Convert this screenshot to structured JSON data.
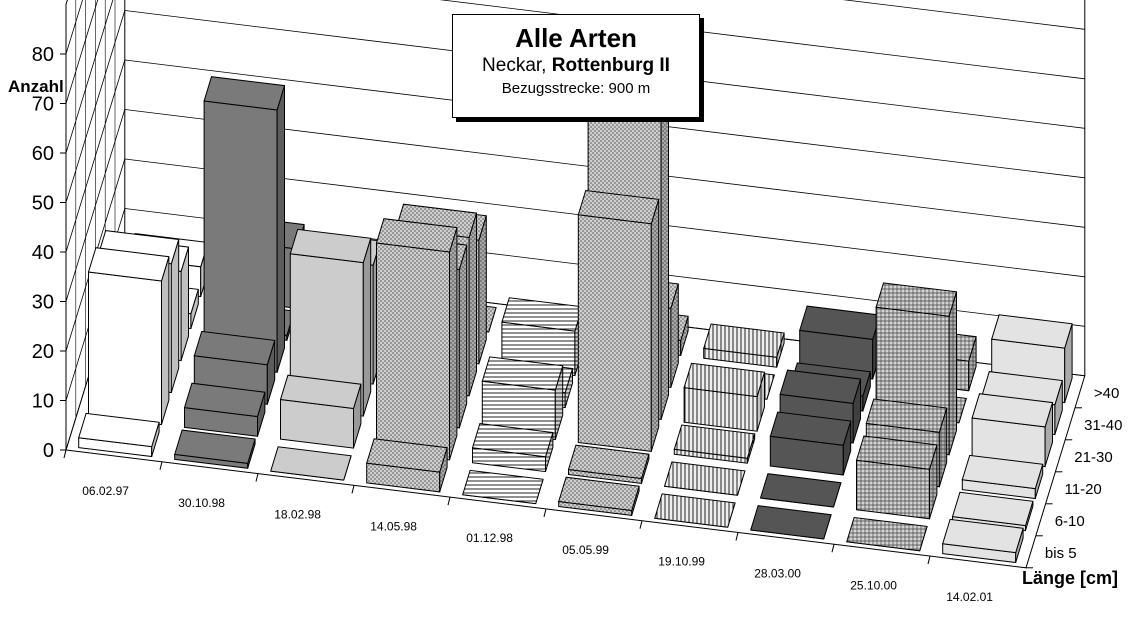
{
  "header": {
    "title": "Alle Arten",
    "subtitle_river": "Neckar,",
    "subtitle_site": "Rottenburg II",
    "reference": "Bezugsstrecke: 900 m"
  },
  "chart_data": {
    "type": "bar3d",
    "ylabel": "Anzahl",
    "zlabel": "Länge [cm]",
    "ylim": [
      0,
      80
    ],
    "yticks": [
      0,
      10,
      20,
      30,
      40,
      50,
      60,
      70,
      80
    ],
    "categories": [
      "06.02.97",
      "30.10.98",
      "18.02.98",
      "14.05.98",
      "01.12.98",
      "05.05.99",
      "19.10.99",
      "28.03.00",
      "25.10.00",
      "14.02.01"
    ],
    "series": [
      {
        "name": "bis 5",
        "values": [
          2,
          1,
          0,
          4,
          0,
          1,
          0,
          0,
          0,
          2
        ]
      },
      {
        "name": "6-10",
        "values": [
          29,
          4,
          8,
          42,
          3,
          1,
          0,
          0,
          10,
          1
        ]
      },
      {
        "name": "11-20",
        "values": [
          26,
          8,
          31,
          32,
          10,
          46,
          1,
          6,
          11,
          2
        ]
      },
      {
        "name": "21-30",
        "values": [
          18,
          53,
          24,
          32,
          3,
          70,
          7,
          8,
          28,
          8
        ]
      },
      {
        "name": "31-40",
        "values": [
          3,
          1,
          6,
          25,
          9,
          16,
          0,
          3,
          0,
          6
        ]
      },
      {
        "name": ">40",
        "values": [
          6,
          12,
          2,
          0,
          1,
          3,
          2,
          8,
          6,
          11
        ]
      }
    ],
    "colors": [
      "#d8d8d8",
      "#f0f0f0",
      "#c9c9c9",
      "#8c8c8c",
      "#bdbdbd",
      "#e6e6e6"
    ]
  }
}
